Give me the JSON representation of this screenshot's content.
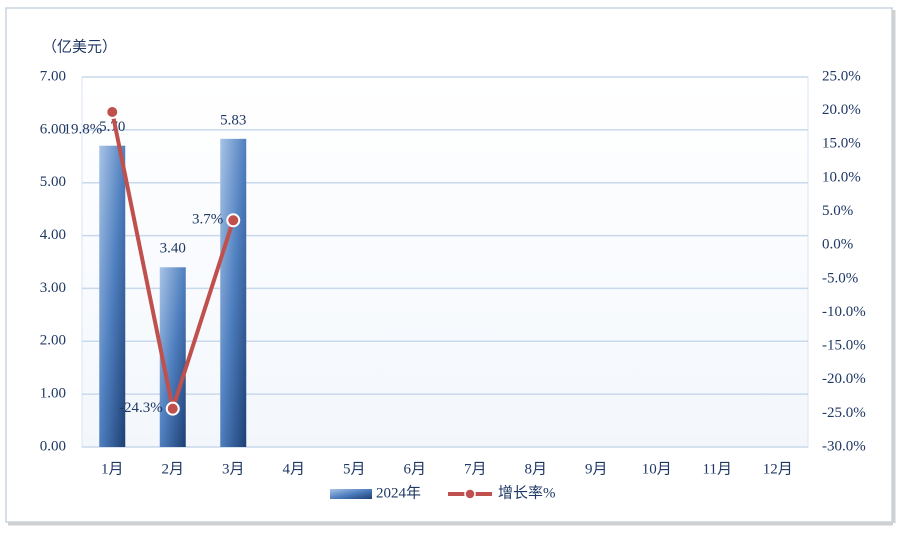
{
  "chart_data": {
    "type": "bar",
    "unit_label": "（亿美元）",
    "categories": [
      "1月",
      "2月",
      "3月",
      "4月",
      "5月",
      "6月",
      "7月",
      "8月",
      "9月",
      "10月",
      "11月",
      "12月"
    ],
    "series": [
      {
        "name": "2024年",
        "type": "bar",
        "color": "#2e5b9a",
        "values": [
          5.7,
          3.4,
          5.83,
          null,
          null,
          null,
          null,
          null,
          null,
          null,
          null,
          null
        ],
        "value_labels": [
          "5.70",
          "3.40",
          "5.83",
          null,
          null,
          null,
          null,
          null,
          null,
          null,
          null,
          null
        ]
      },
      {
        "name": "增长率%",
        "type": "line",
        "axis": "y2",
        "color": "#c0504d",
        "values": [
          19.8,
          -24.3,
          3.7,
          null,
          null,
          null,
          null,
          null,
          null,
          null,
          null,
          null
        ],
        "value_labels": [
          "19.8%",
          "-24.3%",
          "3.7%",
          null,
          null,
          null,
          null,
          null,
          null,
          null,
          null,
          null
        ]
      }
    ],
    "ylim": [
      0,
      7
    ],
    "yticks": [
      {
        "value": 0,
        "label": "0.00"
      },
      {
        "value": 1,
        "label": "1.00"
      },
      {
        "value": 2,
        "label": "2.00"
      },
      {
        "value": 3,
        "label": "3.00"
      },
      {
        "value": 4,
        "label": "4.00"
      },
      {
        "value": 5,
        "label": "5.00"
      },
      {
        "value": 6,
        "label": "6.00"
      },
      {
        "value": 7,
        "label": "7.00"
      }
    ],
    "y2lim": [
      -30,
      25
    ],
    "y2ticks": [
      {
        "value": -30,
        "label": "-30.0%"
      },
      {
        "value": -25,
        "label": "-25.0%"
      },
      {
        "value": -20,
        "label": "-20.0%"
      },
      {
        "value": -15,
        "label": "-15.0%"
      },
      {
        "value": -10,
        "label": "-10.0%"
      },
      {
        "value": -5,
        "label": "-5.0%"
      },
      {
        "value": 0,
        "label": "0.0%"
      },
      {
        "value": 5,
        "label": "5.0%"
      },
      {
        "value": 10,
        "label": "10.0%"
      },
      {
        "value": 15,
        "label": "15.0%"
      },
      {
        "value": 20,
        "label": "20.0%"
      },
      {
        "value": 25,
        "label": "25.0%"
      }
    ],
    "grid": true,
    "legend": "bottom"
  }
}
